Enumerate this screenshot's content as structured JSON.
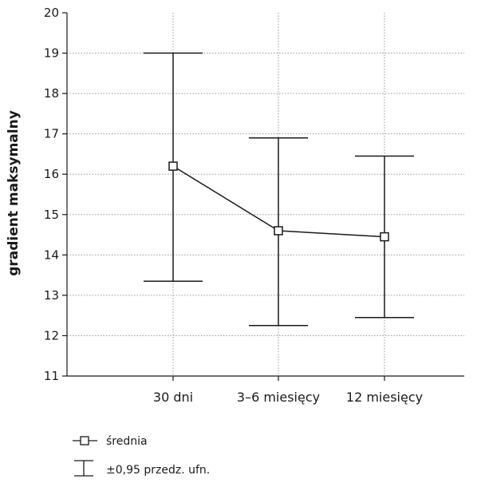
{
  "chart_data": {
    "type": "line",
    "title": "",
    "xlabel": "",
    "ylabel": "gradient maksymalny",
    "categories": [
      "30 dni",
      "3–6 miesięcy",
      "12 miesięcy"
    ],
    "ylim": [
      11,
      20
    ],
    "yticks": [
      11,
      12,
      13,
      14,
      15,
      16,
      17,
      18,
      19,
      20
    ],
    "grid": "horizontal dotted",
    "series": [
      {
        "name": "średnia",
        "values": [
          16.2,
          14.6,
          14.45
        ],
        "lower": [
          13.35,
          12.25,
          12.45
        ],
        "upper": [
          19.0,
          16.9,
          16.45
        ]
      }
    ],
    "legend": {
      "placement": "bottom-left",
      "entries": [
        {
          "label": "średnia",
          "symbol": "line-square"
        },
        {
          "label": "±0,95 przedz. ufn.",
          "symbol": "error-bar"
        }
      ]
    },
    "colors": {
      "line": "#1a1a1a",
      "grid": "#9a9a9a",
      "marker_fill": "#ffffff"
    }
  }
}
